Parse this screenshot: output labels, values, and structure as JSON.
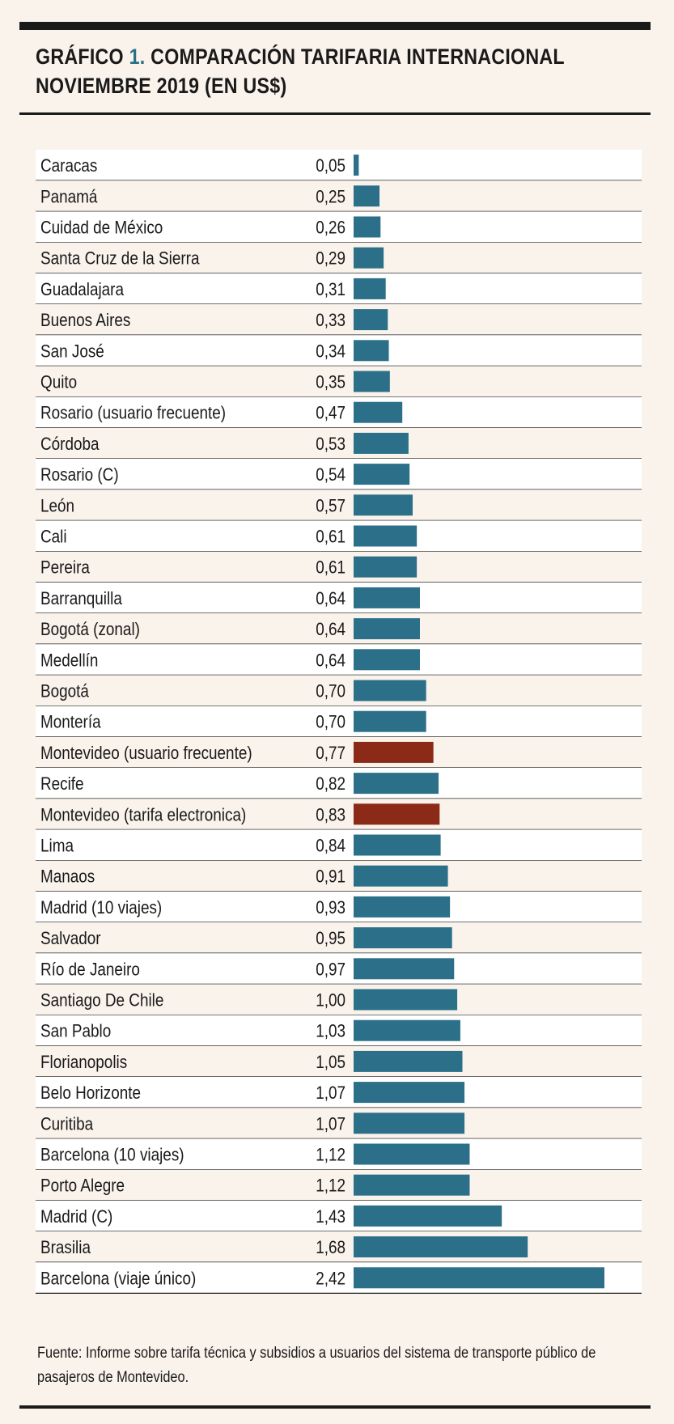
{
  "title": {
    "prefix": "GRÁFICO ",
    "number": "1.",
    "line1_rest": " COMPARACIÓN TARIFARIA INTERNACIONAL",
    "line2": "NOVIEMBRE 2019 (EN US$)"
  },
  "source": "Fuente: Informe sobre tarifa técnica y subsidios a usuarios del sistema de transporte público de pasajeros de Montevideo.",
  "colors": {
    "bar": "#2b7088",
    "highlight": "#8a2a17",
    "row_alt": "#ffffff",
    "row_base": "#faf3ec",
    "rule": "#1a1a1a"
  },
  "chart_data": {
    "type": "bar",
    "orientation": "horizontal",
    "title": "Comparación tarifaria internacional, noviembre 2019 (en US$)",
    "unit": "US$",
    "xlim": [
      0,
      2.42
    ],
    "categories": [
      "Caracas",
      "Panamá",
      "Cuidad de México",
      "Santa Cruz de la Sierra",
      "Guadalajara",
      "Buenos Aires",
      "San José",
      "Quito",
      "Rosario (usuario frecuente)",
      "Córdoba",
      "Rosario (C)",
      "León",
      "Cali",
      "Pereira",
      "Barranquilla",
      "Bogotá (zonal)",
      "Medellín",
      "Bogotá",
      "Montería",
      "Montevideo (usuario frecuente)",
      "Recife",
      "Montevideo (tarifa electronica)",
      "Lima",
      "Manaos",
      "Madrid (10 viajes)",
      "Salvador",
      "Río de Janeiro",
      "Santiago De Chile",
      "San Pablo",
      "Florianopolis",
      "Belo Horizonte",
      "Curitiba",
      "Barcelona (10 viajes)",
      "Porto Alegre",
      "Madrid (C)",
      "Brasilia",
      "Barcelona (viaje único)"
    ],
    "values": [
      0.05,
      0.25,
      0.26,
      0.29,
      0.31,
      0.33,
      0.34,
      0.35,
      0.47,
      0.53,
      0.54,
      0.57,
      0.61,
      0.61,
      0.64,
      0.64,
      0.64,
      0.7,
      0.7,
      0.77,
      0.82,
      0.83,
      0.84,
      0.91,
      0.93,
      0.95,
      0.97,
      1.0,
      1.03,
      1.05,
      1.07,
      1.07,
      1.12,
      1.12,
      1.43,
      1.68,
      2.42
    ],
    "value_labels": [
      "0,05",
      "0,25",
      "0,26",
      "0,29",
      "0,31",
      "0,33",
      "0,34",
      "0,35",
      "0,47",
      "0,53",
      "0,54",
      "0,57",
      "0,61",
      "0,61",
      "0,64",
      "0,64",
      "0,64",
      "0,70",
      "0,70",
      "0,77",
      "0,82",
      "0,83",
      "0,84",
      "0,91",
      "0,93",
      "0,95",
      "0,97",
      "1,00",
      "1,03",
      "1,05",
      "1,07",
      "1,07",
      "1,12",
      "1,12",
      "1,43",
      "1,68",
      "2,42"
    ],
    "highlighted": [
      "Montevideo (usuario frecuente)",
      "Montevideo (tarifa electronica)"
    ]
  }
}
